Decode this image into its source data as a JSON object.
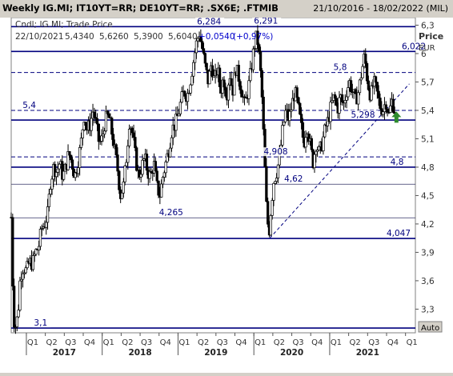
{
  "header": {
    "title": "Weekly IG.MI; IT10YT=RR; DE10YT=RR; .SX6E; .FTMIB",
    "date_range": "21/10/2016 - 18/02/2022 (MIL)"
  },
  "chart_data": {
    "type": "candlestick",
    "instrument": "IG.MI",
    "series_label": "Cndl; IG.MI; Trade Price",
    "readout": {
      "date": "22/10/2021",
      "open": "5,4340",
      "high": "5,6260",
      "low": "5,3900",
      "close": "5,6040",
      "change": "+0,0540",
      "change_pct": "(+0,97%)"
    },
    "y_axis": {
      "title_line1": "Price",
      "title_line2": "EUR",
      "range": [
        3.05,
        6.38
      ],
      "ticks": [
        3.3,
        3.6,
        3.9,
        4.2,
        4.5,
        4.8,
        5.1,
        5.4,
        5.7,
        6.0,
        6.3
      ],
      "tick_labels": [
        "3,3",
        "3,6",
        "3,9",
        "4,2",
        "4,5",
        "4,8",
        "5,1",
        "5,4",
        "5,7",
        "6",
        "6,3"
      ],
      "scale_mode": "Auto"
    },
    "x_axis": {
      "range": [
        2016.8,
        2022.13
      ],
      "quarter_ticks": [
        {
          "t": 2017.0,
          "label": "Q1"
        },
        {
          "t": 2017.25,
          "label": "Q2"
        },
        {
          "t": 2017.5,
          "label": "Q3"
        },
        {
          "t": 2017.75,
          "label": "Q4"
        },
        {
          "t": 2018.0,
          "label": "Q1"
        },
        {
          "t": 2018.25,
          "label": "Q2"
        },
        {
          "t": 2018.5,
          "label": "Q3"
        },
        {
          "t": 2018.75,
          "label": "Q4"
        },
        {
          "t": 2019.0,
          "label": "Q1"
        },
        {
          "t": 2019.25,
          "label": "Q2"
        },
        {
          "t": 2019.5,
          "label": "Q3"
        },
        {
          "t": 2019.75,
          "label": "Q4"
        },
        {
          "t": 2020.0,
          "label": "Q1"
        },
        {
          "t": 2020.25,
          "label": "Q2"
        },
        {
          "t": 2020.5,
          "label": "Q3"
        },
        {
          "t": 2020.75,
          "label": "Q4"
        },
        {
          "t": 2021.0,
          "label": "Q1"
        },
        {
          "t": 2021.25,
          "label": "Q2"
        },
        {
          "t": 2021.5,
          "label": "Q3"
        },
        {
          "t": 2021.75,
          "label": "Q4"
        },
        {
          "t": 2022.0,
          "label": "Q1"
        }
      ],
      "years": [
        {
          "label": "2017",
          "t0": 2017.0,
          "t1": 2018.0
        },
        {
          "label": "2018",
          "t0": 2018.0,
          "t1": 2019.0
        },
        {
          "label": "2019",
          "t0": 2019.0,
          "t1": 2020.0
        },
        {
          "label": "2020",
          "t0": 2020.0,
          "t1": 2021.0
        },
        {
          "label": "2021",
          "t0": 2021.0,
          "t1": 2022.0
        }
      ]
    },
    "levels": [
      {
        "value": 6.284,
        "label": "6,284",
        "style": "solid",
        "label_t": 2019.25
      },
      {
        "value": 6.291,
        "label": "6,291",
        "style": "none",
        "label_t": 2020.0
      },
      {
        "value": 6.022,
        "label": "6,022",
        "style": "solid",
        "label_t": 2021.95
      },
      {
        "value": 5.8,
        "label": "5,8",
        "style": "dashed",
        "label_t": 2021.05
      },
      {
        "value": 5.4,
        "label": "5,4",
        "style": "dashed",
        "label_t": 2016.95
      },
      {
        "value": 5.298,
        "label": "5,298",
        "style": "solid",
        "label_t": 2021.28
      },
      {
        "value": 4.908,
        "label": "4,908",
        "style": "dashed",
        "label_t": 2020.13
      },
      {
        "value": 4.8,
        "label": "4,8",
        "style": "solid",
        "label_t": 2021.8
      },
      {
        "value": 4.62,
        "label": "4,62",
        "style": "thin",
        "label_t": 2020.4
      },
      {
        "value": 4.265,
        "label": "4,265",
        "style": "thin",
        "label_t": 2018.75
      },
      {
        "value": 4.047,
        "label": "4,047",
        "style": "solid",
        "label_t": 2021.75
      },
      {
        "value": 3.1,
        "label": "3,1",
        "style": "solid",
        "label_t": 2017.1
      }
    ],
    "trendline": {
      "from": {
        "t": 2020.21,
        "v": 4.05
      },
      "to": {
        "t": 2022.05,
        "v": 5.68
      }
    },
    "marker": {
      "t": 2021.88,
      "v": 5.32,
      "kind": "up-arrow",
      "color": "#2e8b2e"
    },
    "candle_color": "#000000",
    "line_color": "#00007f",
    "path": [
      [
        2016.8,
        4.27
      ],
      [
        2016.83,
        3.2
      ],
      [
        2016.86,
        3.12
      ],
      [
        2016.89,
        3.25
      ],
      [
        2016.92,
        3.65
      ],
      [
        2016.96,
        3.75
      ],
      [
        2017.0,
        3.7
      ],
      [
        2017.04,
        3.8
      ],
      [
        2017.08,
        3.78
      ],
      [
        2017.12,
        3.9
      ],
      [
        2017.16,
        3.95
      ],
      [
        2017.2,
        4.15
      ],
      [
        2017.24,
        4.2
      ],
      [
        2017.28,
        4.3
      ],
      [
        2017.32,
        4.65
      ],
      [
        2017.36,
        4.8
      ],
      [
        2017.4,
        4.75
      ],
      [
        2017.44,
        4.85
      ],
      [
        2017.48,
        4.7
      ],
      [
        2017.52,
        4.8
      ],
      [
        2017.56,
        4.95
      ],
      [
        2017.6,
        4.85
      ],
      [
        2017.64,
        4.7
      ],
      [
        2017.68,
        4.85
      ],
      [
        2017.72,
        5.05
      ],
      [
        2017.76,
        5.35
      ],
      [
        2017.8,
        5.2
      ],
      [
        2017.84,
        5.25
      ],
      [
        2017.88,
        5.4
      ],
      [
        2017.92,
        5.25
      ],
      [
        2017.96,
        5.05
      ],
      [
        2018.0,
        5.1
      ],
      [
        2018.04,
        5.3
      ],
      [
        2018.08,
        5.35
      ],
      [
        2018.12,
        5.2
      ],
      [
        2018.16,
        5.0
      ],
      [
        2018.2,
        4.8
      ],
      [
        2018.24,
        4.5
      ],
      [
        2018.28,
        4.6
      ],
      [
        2018.32,
        4.9
      ],
      [
        2018.36,
        5.3
      ],
      [
        2018.4,
        5.15
      ],
      [
        2018.44,
        4.9
      ],
      [
        2018.48,
        4.7
      ],
      [
        2018.52,
        4.8
      ],
      [
        2018.56,
        4.9
      ],
      [
        2018.6,
        4.75
      ],
      [
        2018.64,
        4.7
      ],
      [
        2018.68,
        4.85
      ],
      [
        2018.72,
        4.6
      ],
      [
        2018.76,
        4.5
      ],
      [
        2018.8,
        4.7
      ],
      [
        2018.84,
        4.85
      ],
      [
        2018.88,
        5.0
      ],
      [
        2018.92,
        5.2
      ],
      [
        2018.96,
        5.25
      ],
      [
        2019.0,
        5.35
      ],
      [
        2019.04,
        5.5
      ],
      [
        2019.08,
        5.6
      ],
      [
        2019.12,
        5.55
      ],
      [
        2019.16,
        5.7
      ],
      [
        2019.2,
        5.9
      ],
      [
        2019.24,
        6.1
      ],
      [
        2019.28,
        6.22
      ],
      [
        2019.32,
        6.05
      ],
      [
        2019.36,
        5.85
      ],
      [
        2019.4,
        5.7
      ],
      [
        2019.44,
        5.9
      ],
      [
        2019.48,
        5.7
      ],
      [
        2019.52,
        5.85
      ],
      [
        2019.56,
        5.6
      ],
      [
        2019.6,
        5.75
      ],
      [
        2019.64,
        5.55
      ],
      [
        2019.68,
        5.8
      ],
      [
        2019.72,
        5.6
      ],
      [
        2019.76,
        5.85
      ],
      [
        2019.8,
        5.75
      ],
      [
        2019.84,
        5.6
      ],
      [
        2019.88,
        5.45
      ],
      [
        2019.92,
        5.6
      ],
      [
        2019.96,
        5.8
      ],
      [
        2020.0,
        6.05
      ],
      [
        2020.04,
        6.2
      ],
      [
        2020.08,
        5.9
      ],
      [
        2020.11,
        5.5
      ],
      [
        2020.14,
        4.9
      ],
      [
        2020.17,
        4.3
      ],
      [
        2020.2,
        4.1
      ],
      [
        2020.23,
        4.4
      ],
      [
        2020.26,
        4.65
      ],
      [
        2020.3,
        4.75
      ],
      [
        2020.34,
        4.9
      ],
      [
        2020.38,
        5.2
      ],
      [
        2020.42,
        5.4
      ],
      [
        2020.46,
        5.3
      ],
      [
        2020.5,
        5.45
      ],
      [
        2020.54,
        5.6
      ],
      [
        2020.58,
        5.45
      ],
      [
        2020.62,
        5.25
      ],
      [
        2020.66,
        5.05
      ],
      [
        2020.7,
        5.25
      ],
      [
        2020.74,
        5.05
      ],
      [
        2020.78,
        4.85
      ],
      [
        2020.82,
        5.05
      ],
      [
        2020.86,
        4.95
      ],
      [
        2020.9,
        5.05
      ],
      [
        2020.94,
        5.2
      ],
      [
        2020.98,
        5.3
      ],
      [
        2021.02,
        5.45
      ],
      [
        2021.06,
        5.55
      ],
      [
        2021.1,
        5.4
      ],
      [
        2021.14,
        5.55
      ],
      [
        2021.18,
        5.45
      ],
      [
        2021.22,
        5.6
      ],
      [
        2021.26,
        5.7
      ],
      [
        2021.3,
        5.6
      ],
      [
        2021.34,
        5.5
      ],
      [
        2021.38,
        5.6
      ],
      [
        2021.42,
        5.8
      ],
      [
        2021.46,
        5.98
      ],
      [
        2021.5,
        5.7
      ],
      [
        2021.54,
        5.55
      ],
      [
        2021.58,
        5.7
      ],
      [
        2021.62,
        5.6
      ],
      [
        2021.66,
        5.45
      ],
      [
        2021.7,
        5.4
      ],
      [
        2021.74,
        5.5
      ],
      [
        2021.78,
        5.35
      ],
      [
        2021.82,
        5.5
      ],
      [
        2021.86,
        5.4
      ]
    ]
  }
}
